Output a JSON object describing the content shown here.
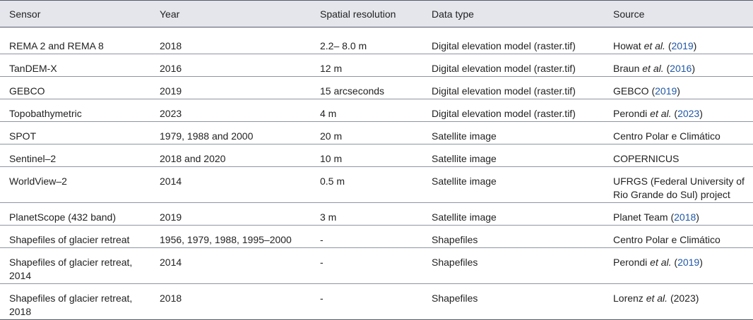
{
  "headers": [
    "Sensor",
    "Year",
    "Spatial resolution",
    "Data type",
    "Source"
  ],
  "rows": [
    {
      "sensor": "REMA 2 and REMA 8",
      "year": "2018",
      "resolution": "2.2– 8.0 m",
      "data_type": "Digital elevation model (raster.tif)",
      "source": {
        "pre": "Howat ",
        "etal": "et al.",
        "open": " (",
        "year": "2019",
        "close": ")"
      }
    },
    {
      "sensor": "TanDEM-X",
      "year": "2016",
      "resolution": "12 m",
      "data_type": "Digital elevation model (raster.tif)",
      "source": {
        "pre": "Braun ",
        "etal": "et al.",
        "open": " (",
        "year": "2016",
        "close": ")"
      }
    },
    {
      "sensor": "GEBCO",
      "year": "2019",
      "resolution": "15 arcseconds",
      "data_type": "Digital elevation model (raster.tif)",
      "source": {
        "pre": "GEBCO",
        "open": " (",
        "year": "2019",
        "close": ")"
      }
    },
    {
      "sensor": "Topobathymetric",
      "year": "2023",
      "resolution": "4 m",
      "data_type": "Digital elevation model (raster.tif)",
      "source": {
        "pre": "Perondi ",
        "etal": "et al.",
        "open": " (",
        "year": "2023",
        "close": ")"
      }
    },
    {
      "sensor": "SPOT",
      "year": "1979, 1988 and 2000",
      "resolution": "20 m",
      "data_type": "Satellite image",
      "source": {
        "pre": "Centro Polar e Climático"
      }
    },
    {
      "sensor": "Sentinel–2",
      "year": "2018 and 2020",
      "resolution": "10 m",
      "data_type": "Satellite image",
      "source": {
        "pre": "COPERNICUS"
      }
    },
    {
      "sensor": "WorldView–2",
      "year": "2014",
      "resolution": "0.5 m",
      "data_type": "Satellite image",
      "source": {
        "pre": "UFRGS (Federal University of Rio Grande do Sul) project"
      }
    },
    {
      "sensor": "PlanetScope (432 band)",
      "year": "2019",
      "resolution": "3 m",
      "data_type": "Satellite image",
      "source": {
        "pre": "Planet Team",
        "open": " (",
        "year": "2018",
        "close": ")"
      }
    },
    {
      "sensor": "Shapefiles of glacier retreat",
      "year": "1956, 1979, 1988, 1995–2000",
      "resolution": "-",
      "data_type": "Shapefiles",
      "source": {
        "pre": "Centro Polar e Climático"
      }
    },
    {
      "sensor": "Shapefiles of glacier retreat, 2014",
      "year": "2014",
      "resolution": "-",
      "data_type": "Shapefiles",
      "source": {
        "pre": "Perondi ",
        "etal": "et al.",
        "open": " (",
        "year": "2019",
        "close": ")"
      }
    },
    {
      "sensor": "Shapefiles of glacier retreat, 2018",
      "year": "2018",
      "resolution": "-",
      "data_type": "Shapefiles",
      "source": {
        "pre": "Lorenz ",
        "etal": "et al.",
        "plain_year": " (2023)"
      }
    }
  ]
}
